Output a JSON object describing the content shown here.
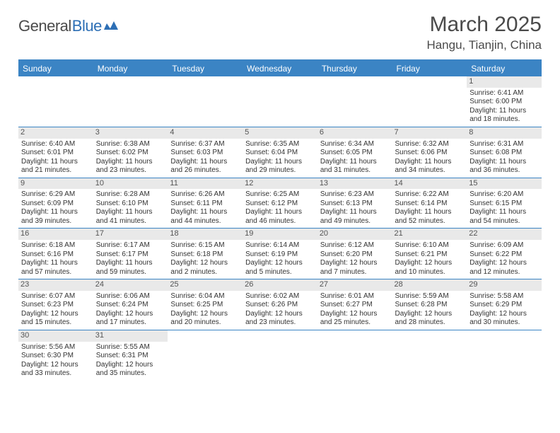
{
  "logo": {
    "word1": "General",
    "word2": "Blue",
    "color1": "#4b4b4b",
    "color2": "#2d6fb5"
  },
  "title": "March 2025",
  "location": "Hangu, Tianjin, China",
  "colors": {
    "header_bg": "#3b84c4",
    "header_text": "#ffffff",
    "border": "#3b84c4",
    "daynum_bg": "#e9e9e9",
    "text": "#333333"
  },
  "weekdays": [
    "Sunday",
    "Monday",
    "Tuesday",
    "Wednesday",
    "Thursday",
    "Friday",
    "Saturday"
  ],
  "weeks": [
    [
      null,
      null,
      null,
      null,
      null,
      null,
      {
        "n": "1",
        "sr": "Sunrise: 6:41 AM",
        "ss": "Sunset: 6:00 PM",
        "dl": "Daylight: 11 hours and 18 minutes."
      }
    ],
    [
      {
        "n": "2",
        "sr": "Sunrise: 6:40 AM",
        "ss": "Sunset: 6:01 PM",
        "dl": "Daylight: 11 hours and 21 minutes."
      },
      {
        "n": "3",
        "sr": "Sunrise: 6:38 AM",
        "ss": "Sunset: 6:02 PM",
        "dl": "Daylight: 11 hours and 23 minutes."
      },
      {
        "n": "4",
        "sr": "Sunrise: 6:37 AM",
        "ss": "Sunset: 6:03 PM",
        "dl": "Daylight: 11 hours and 26 minutes."
      },
      {
        "n": "5",
        "sr": "Sunrise: 6:35 AM",
        "ss": "Sunset: 6:04 PM",
        "dl": "Daylight: 11 hours and 29 minutes."
      },
      {
        "n": "6",
        "sr": "Sunrise: 6:34 AM",
        "ss": "Sunset: 6:05 PM",
        "dl": "Daylight: 11 hours and 31 minutes."
      },
      {
        "n": "7",
        "sr": "Sunrise: 6:32 AM",
        "ss": "Sunset: 6:06 PM",
        "dl": "Daylight: 11 hours and 34 minutes."
      },
      {
        "n": "8",
        "sr": "Sunrise: 6:31 AM",
        "ss": "Sunset: 6:08 PM",
        "dl": "Daylight: 11 hours and 36 minutes."
      }
    ],
    [
      {
        "n": "9",
        "sr": "Sunrise: 6:29 AM",
        "ss": "Sunset: 6:09 PM",
        "dl": "Daylight: 11 hours and 39 minutes."
      },
      {
        "n": "10",
        "sr": "Sunrise: 6:28 AM",
        "ss": "Sunset: 6:10 PM",
        "dl": "Daylight: 11 hours and 41 minutes."
      },
      {
        "n": "11",
        "sr": "Sunrise: 6:26 AM",
        "ss": "Sunset: 6:11 PM",
        "dl": "Daylight: 11 hours and 44 minutes."
      },
      {
        "n": "12",
        "sr": "Sunrise: 6:25 AM",
        "ss": "Sunset: 6:12 PM",
        "dl": "Daylight: 11 hours and 46 minutes."
      },
      {
        "n": "13",
        "sr": "Sunrise: 6:23 AM",
        "ss": "Sunset: 6:13 PM",
        "dl": "Daylight: 11 hours and 49 minutes."
      },
      {
        "n": "14",
        "sr": "Sunrise: 6:22 AM",
        "ss": "Sunset: 6:14 PM",
        "dl": "Daylight: 11 hours and 52 minutes."
      },
      {
        "n": "15",
        "sr": "Sunrise: 6:20 AM",
        "ss": "Sunset: 6:15 PM",
        "dl": "Daylight: 11 hours and 54 minutes."
      }
    ],
    [
      {
        "n": "16",
        "sr": "Sunrise: 6:18 AM",
        "ss": "Sunset: 6:16 PM",
        "dl": "Daylight: 11 hours and 57 minutes."
      },
      {
        "n": "17",
        "sr": "Sunrise: 6:17 AM",
        "ss": "Sunset: 6:17 PM",
        "dl": "Daylight: 11 hours and 59 minutes."
      },
      {
        "n": "18",
        "sr": "Sunrise: 6:15 AM",
        "ss": "Sunset: 6:18 PM",
        "dl": "Daylight: 12 hours and 2 minutes."
      },
      {
        "n": "19",
        "sr": "Sunrise: 6:14 AM",
        "ss": "Sunset: 6:19 PM",
        "dl": "Daylight: 12 hours and 5 minutes."
      },
      {
        "n": "20",
        "sr": "Sunrise: 6:12 AM",
        "ss": "Sunset: 6:20 PM",
        "dl": "Daylight: 12 hours and 7 minutes."
      },
      {
        "n": "21",
        "sr": "Sunrise: 6:10 AM",
        "ss": "Sunset: 6:21 PM",
        "dl": "Daylight: 12 hours and 10 minutes."
      },
      {
        "n": "22",
        "sr": "Sunrise: 6:09 AM",
        "ss": "Sunset: 6:22 PM",
        "dl": "Daylight: 12 hours and 12 minutes."
      }
    ],
    [
      {
        "n": "23",
        "sr": "Sunrise: 6:07 AM",
        "ss": "Sunset: 6:23 PM",
        "dl": "Daylight: 12 hours and 15 minutes."
      },
      {
        "n": "24",
        "sr": "Sunrise: 6:06 AM",
        "ss": "Sunset: 6:24 PM",
        "dl": "Daylight: 12 hours and 17 minutes."
      },
      {
        "n": "25",
        "sr": "Sunrise: 6:04 AM",
        "ss": "Sunset: 6:25 PM",
        "dl": "Daylight: 12 hours and 20 minutes."
      },
      {
        "n": "26",
        "sr": "Sunrise: 6:02 AM",
        "ss": "Sunset: 6:26 PM",
        "dl": "Daylight: 12 hours and 23 minutes."
      },
      {
        "n": "27",
        "sr": "Sunrise: 6:01 AM",
        "ss": "Sunset: 6:27 PM",
        "dl": "Daylight: 12 hours and 25 minutes."
      },
      {
        "n": "28",
        "sr": "Sunrise: 5:59 AM",
        "ss": "Sunset: 6:28 PM",
        "dl": "Daylight: 12 hours and 28 minutes."
      },
      {
        "n": "29",
        "sr": "Sunrise: 5:58 AM",
        "ss": "Sunset: 6:29 PM",
        "dl": "Daylight: 12 hours and 30 minutes."
      }
    ],
    [
      {
        "n": "30",
        "sr": "Sunrise: 5:56 AM",
        "ss": "Sunset: 6:30 PM",
        "dl": "Daylight: 12 hours and 33 minutes."
      },
      {
        "n": "31",
        "sr": "Sunrise: 5:55 AM",
        "ss": "Sunset: 6:31 PM",
        "dl": "Daylight: 12 hours and 35 minutes."
      },
      null,
      null,
      null,
      null,
      null
    ]
  ]
}
